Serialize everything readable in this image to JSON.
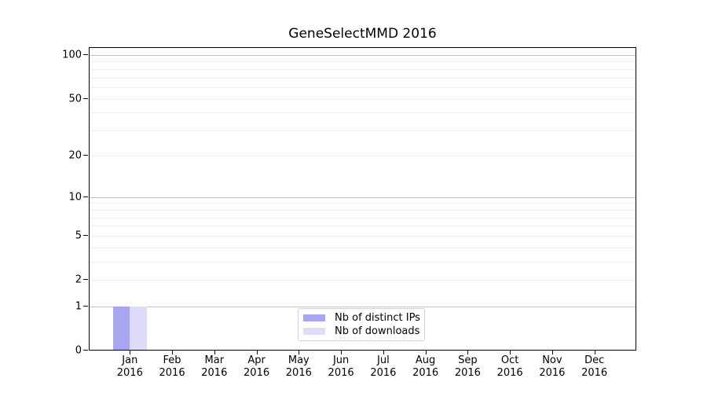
{
  "chart_data": {
    "type": "bar",
    "title": "GeneSelectMMD 2016",
    "categories": [
      "Jan",
      "Feb",
      "Mar",
      "Apr",
      "May",
      "Jun",
      "Jul",
      "Aug",
      "Sep",
      "Oct",
      "Nov",
      "Dec"
    ],
    "x_year_label": "2016",
    "series": [
      {
        "name": "Nb of distinct IPs",
        "color": "#a6a6f1",
        "values": [
          1,
          0,
          0,
          0,
          0,
          0,
          0,
          0,
          0,
          0,
          0,
          0
        ]
      },
      {
        "name": "Nb of downloads",
        "color": "#dcdcf8",
        "values": [
          1,
          0,
          0,
          0,
          0,
          0,
          0,
          0,
          0,
          0,
          0,
          0
        ]
      }
    ],
    "y_scale": "log1p",
    "ylim": [
      0,
      113
    ],
    "y_tick_values": [
      0,
      1,
      2,
      5,
      10,
      20,
      50,
      100
    ],
    "y_tick_labels": [
      "0",
      "1",
      "2",
      "5",
      "10",
      "20",
      "50",
      "100"
    ],
    "major_gridline_values": [
      1,
      10,
      100
    ],
    "minor_gridline_values": [
      2,
      3,
      4,
      5,
      6,
      7,
      8,
      9,
      20,
      30,
      40,
      50,
      60,
      70,
      80,
      90
    ],
    "grid": true,
    "legend_position": "lower center inside axes"
  },
  "colors": {
    "background": "#ffffff",
    "spine": "#000000",
    "major_gridline": "#c3c3c3",
    "minor_gridline": "#ededed",
    "text": "#000000",
    "legend_border": "#d2d2d2"
  }
}
